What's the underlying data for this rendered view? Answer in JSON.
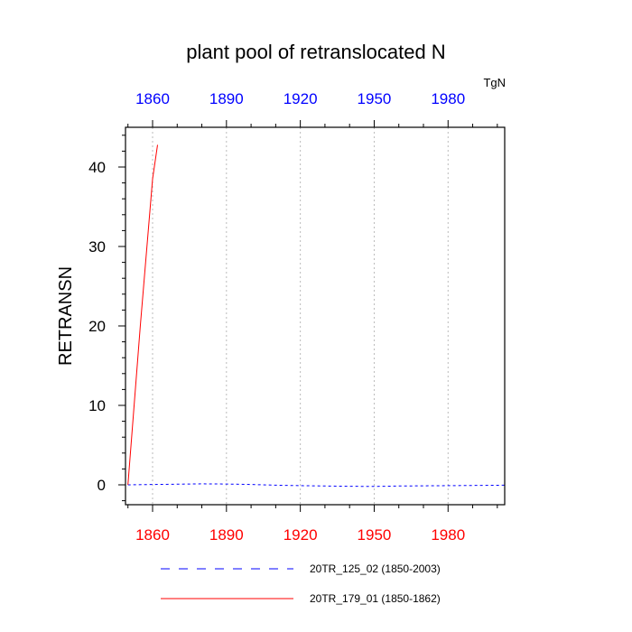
{
  "chart_data": {
    "type": "line",
    "title": "plant pool of retranslocated N",
    "units": "TgN",
    "ylabel": "RETRANSN",
    "xlabel": "",
    "xlim": [
      1849,
      2003
    ],
    "ylim": [
      -2.5,
      45
    ],
    "xticks": [
      1860,
      1890,
      1920,
      1950,
      1980
    ],
    "yticks": [
      0,
      10,
      20,
      30,
      40
    ],
    "grid": "vertical dotted",
    "series": [
      {
        "name": "20TR_125_02 (1850-2003)",
        "color": "#0000ff",
        "dash": "dashed",
        "x": [
          1850,
          1860,
          1870,
          1880,
          1890,
          1900,
          1910,
          1920,
          1930,
          1940,
          1950,
          1960,
          1970,
          1980,
          1990,
          2003
        ],
        "y": [
          0.0,
          0.05,
          0.08,
          0.12,
          0.1,
          0.05,
          -0.05,
          -0.1,
          -0.15,
          -0.18,
          -0.2,
          -0.15,
          -0.12,
          -0.1,
          -0.08,
          -0.05
        ]
      },
      {
        "name": "20TR_179_01 (1850-1862)",
        "color": "#ff0000",
        "dash": "solid",
        "x": [
          1850,
          1855,
          1860,
          1862
        ],
        "y": [
          0.0,
          20.0,
          38.5,
          42.8
        ]
      }
    ]
  }
}
